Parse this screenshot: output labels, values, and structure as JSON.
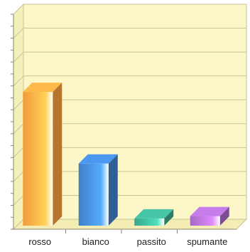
{
  "chart_data": {
    "type": "bar",
    "style": "3d",
    "categories": [
      "rosso",
      "bianco",
      "passito",
      "spumante"
    ],
    "values": [
      56,
      26,
      3,
      4
    ],
    "ylim": [
      0,
      90
    ],
    "grid": true,
    "legend": "none",
    "colors": {
      "plot_background": "#fbf7c8",
      "grid": "#c9c39a",
      "series": [
        "#f29a3e",
        "#3f7fc9",
        "#3aa58b",
        "#a667c4"
      ]
    }
  }
}
